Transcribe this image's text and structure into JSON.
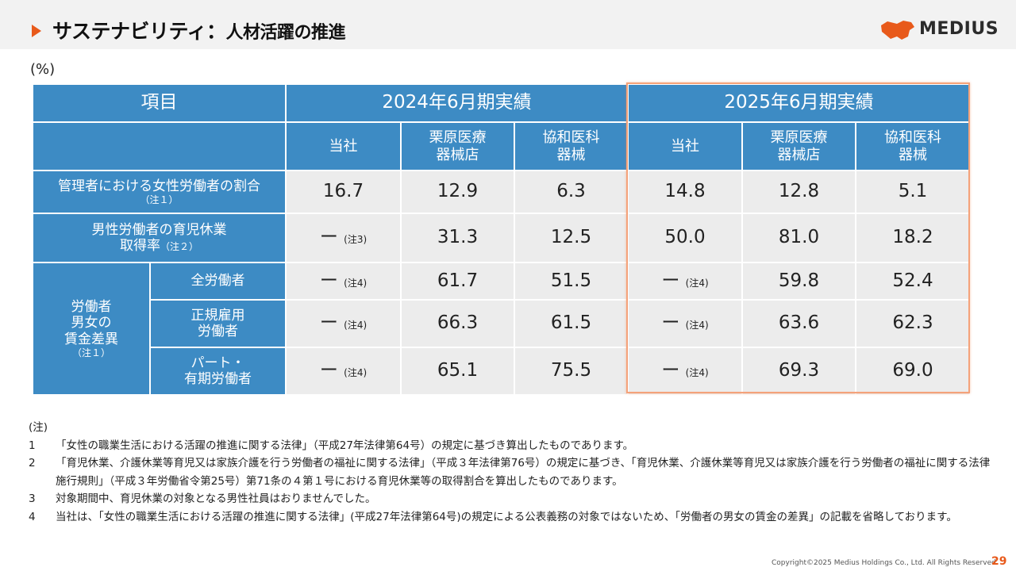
{
  "header": {
    "title_main": "サステナビリティ：",
    "title_sub": "人材活躍の推進",
    "logo_text": "MEDIUS"
  },
  "unit_label": "(%)",
  "table": {
    "col_item": "項目",
    "period_2024": "2024年6月期実績",
    "period_2025": "2025年6月期実績",
    "companies": [
      "当社",
      "栗原医療\n器械店",
      "協和医科\n器械"
    ],
    "row1": {
      "label": "管理者における女性労働者の割合",
      "note": "（注１）",
      "values": [
        "16.7",
        "12.9",
        "6.3",
        "14.8",
        "12.8",
        "5.1"
      ]
    },
    "row2": {
      "label_line1": "男性労働者の育児休業",
      "label_line2": "取得率",
      "note": "（注２）",
      "dash": "ー",
      "dash_note": "(注3)",
      "values": [
        "31.3",
        "12.5",
        "50.0",
        "81.0",
        "18.2"
      ]
    },
    "wage": {
      "group_label_1": "労働者",
      "group_label_2": "男女の",
      "group_label_3": "賃金差異",
      "group_note": "（注１）",
      "dash": "ー",
      "dash_note": "(注4)",
      "rows": [
        {
          "label_1": "全労働者",
          "label_2": "",
          "v1": "61.7",
          "v2": "51.5",
          "v3": "59.8",
          "v4": "52.4"
        },
        {
          "label_1": "正規雇用",
          "label_2": "労働者",
          "v1": "66.3",
          "v2": "61.5",
          "v3": "63.6",
          "v4": "62.3"
        },
        {
          "label_1": "パート・",
          "label_2": "有期労働者",
          "v1": "65.1",
          "v2": "75.5",
          "v3": "69.3",
          "v4": "69.0"
        }
      ]
    }
  },
  "notes": {
    "heading": "(注)",
    "items": [
      {
        "num": "1",
        "text": "「女性の職業生活における活躍の推進に関する法律」（平成27年法律第64号）の規定に基づき算出したものであります。"
      },
      {
        "num": "2",
        "text": "「育児休業、介護休業等育児又は家族介護を行う労働者の福祉に関する法律」（平成３年法律第76号）の規定に基づき、「育児休業、介護休業等育児又は家族介護を行う労働者の福祉に関する法律施行規則」（平成３年労働省令第25号）第71条の４第１号における育児休業等の取得割合を算出したものであります。"
      },
      {
        "num": "3",
        "text": "対象期間中、育児休業の対象となる男性社員はおりませんでした。"
      },
      {
        "num": "4",
        "text": "当社は、「女性の職業生活における活躍の推進に関する法律」(平成27年法律第64号)の規定による公表義務の対象ではないため、「労働者の男女の賃金の差異」の記載を省略しております。"
      }
    ]
  },
  "footer": {
    "copyright": "Copyright©2025 Medius Holdings Co., Ltd. All Rights Reserved",
    "page_number": "29"
  },
  "colors": {
    "accent": "#e85a1b",
    "header_blue": "#3d8bc4",
    "cell_gray": "#ececec",
    "highlight_border": "#f4a27a"
  }
}
